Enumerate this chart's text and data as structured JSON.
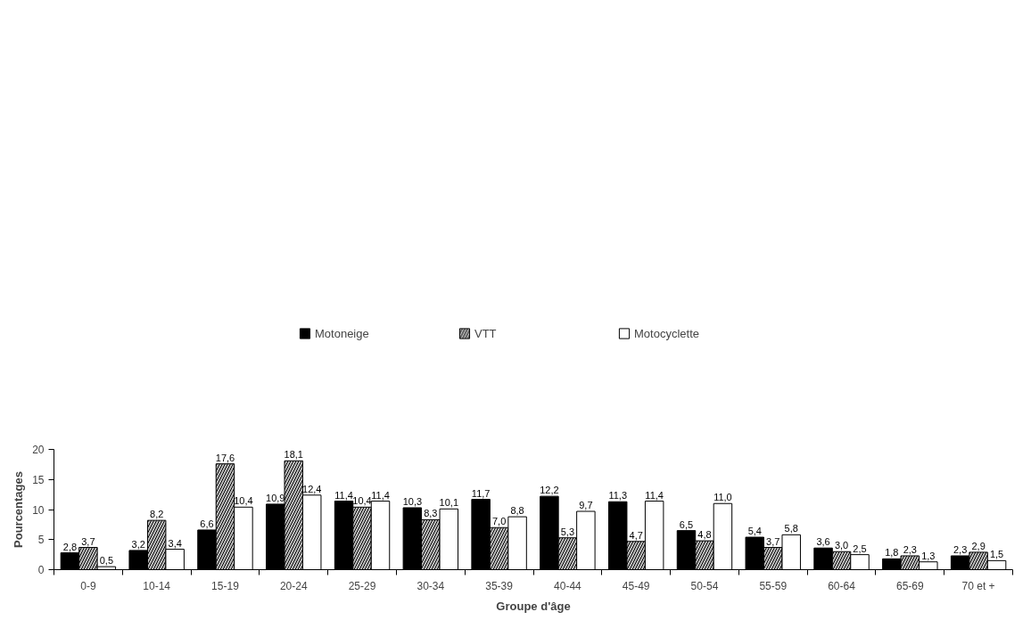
{
  "chart_data": {
    "type": "bar",
    "xlabel": "Groupe d'âge",
    "ylabel": "Pourcentages",
    "categories": [
      "0-9",
      "10-14",
      "15-19",
      "20-24",
      "25-29",
      "30-34",
      "35-39",
      "40-44",
      "45-49",
      "50-54",
      "55-59",
      "60-64",
      "65-69",
      "70 et +"
    ],
    "series": [
      {
        "name": "Motoneige",
        "color": "#000000",
        "values": [
          2.8,
          3.2,
          6.6,
          10.9,
          11.4,
          10.3,
          11.7,
          12.2,
          11.3,
          6.5,
          5.4,
          3.6,
          1.8,
          2.3
        ],
        "value_labels": [
          "2,8",
          "3,2",
          "6,6",
          "10,9",
          "11,4",
          "10,3",
          "11,7",
          "12,2",
          "11,3",
          "6,5",
          "5,4",
          "3,6",
          "1,8",
          "2,3"
        ]
      },
      {
        "name": "VTT",
        "color": "#c0c0c0",
        "values": [
          3.7,
          8.2,
          17.6,
          18.1,
          10.4,
          8.3,
          7.0,
          5.3,
          4.7,
          4.8,
          3.7,
          3.0,
          2.3,
          2.9
        ],
        "value_labels": [
          "3,7",
          "8,2",
          "17,6",
          "18,1",
          "10,4",
          "8,3",
          "7,0",
          "5,3",
          "4,7",
          "4,8",
          "3,7",
          "3,0",
          "2,3",
          "2,9"
        ]
      },
      {
        "name": "Motocyclette",
        "color": "#ffffff",
        "values": [
          0.5,
          3.4,
          10.4,
          12.4,
          11.4,
          10.1,
          8.8,
          9.7,
          11.4,
          11.0,
          5.8,
          2.5,
          1.3,
          1.5
        ],
        "value_labels": [
          "0,5",
          "3,4",
          "10,4",
          "12,4",
          "11,4",
          "10,1",
          "8,8",
          "9,7",
          "11,4",
          "11,0",
          "5,8",
          "2,5",
          "1,3",
          "1,5"
        ]
      }
    ],
    "ylim": [
      0,
      20
    ],
    "yticks": [
      0,
      5,
      10,
      15,
      20
    ],
    "grid": false,
    "legend": "top"
  }
}
